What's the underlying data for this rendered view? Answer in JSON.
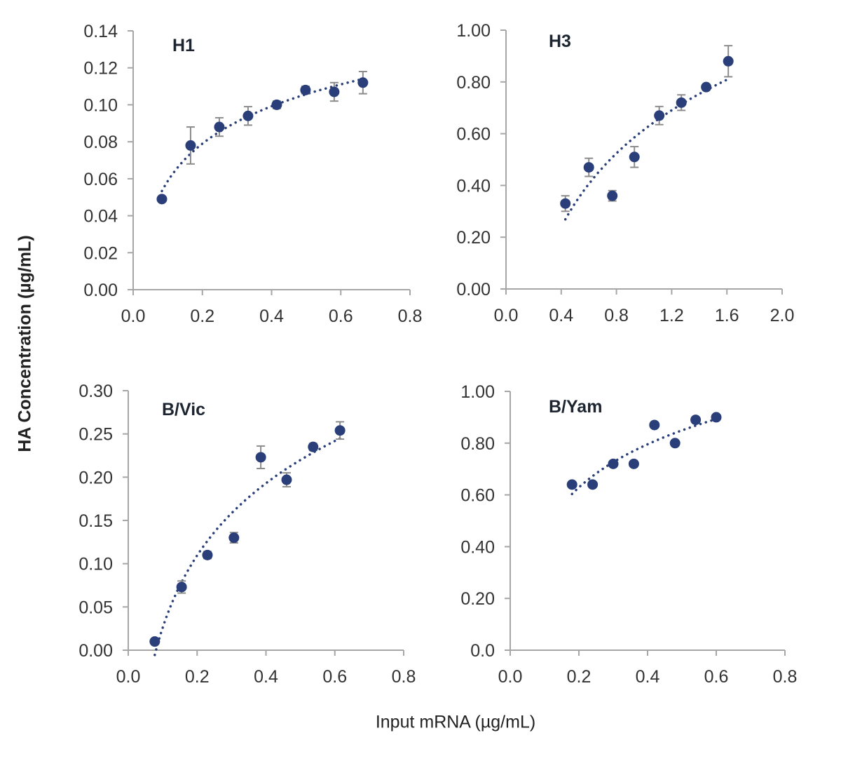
{
  "chart_data": {
    "type": "scatter",
    "xlabel": "Input mRNA (µg/mL)",
    "ylabel": "HA Concentration (µg/mL)",
    "colors": {
      "marker": "#2a3f7a",
      "trendline": "#2a3f7a",
      "error_bar": "#8c8c8c",
      "axis": "#a6a6a6"
    },
    "panels": [
      {
        "title": "H1",
        "xlim": [
          0,
          0.8
        ],
        "xticks": [
          "0.0",
          "0.2",
          "0.4",
          "0.6",
          "0.8"
        ],
        "ylim": [
          0,
          0.14
        ],
        "yticks": [
          "0.00",
          "0.02",
          "0.04",
          "0.06",
          "0.08",
          "0.10",
          "0.12",
          "0.14"
        ],
        "x": [
          0.083,
          0.166,
          0.249,
          0.332,
          0.415,
          0.498,
          0.581,
          0.664
        ],
        "y": [
          0.049,
          0.078,
          0.088,
          0.094,
          0.1,
          0.108,
          0.107,
          0.112
        ],
        "error": [
          0,
          0.01,
          0.005,
          0.005,
          0.002,
          0.002,
          0.005,
          0.006
        ],
        "trendline": "logarithmic"
      },
      {
        "title": "H3",
        "xlim": [
          0,
          2.0
        ],
        "xticks": [
          "0.0",
          "0.4",
          "0.8",
          "1.2",
          "1.6",
          "2.0"
        ],
        "ylim": [
          0,
          1.0
        ],
        "yticks": [
          "0.00",
          "0.20",
          "0.40",
          "0.60",
          "0.80",
          "1.00"
        ],
        "x": [
          0.43,
          0.6,
          0.77,
          0.93,
          1.11,
          1.27,
          1.45,
          1.61
        ],
        "y": [
          0.33,
          0.47,
          0.36,
          0.51,
          0.67,
          0.72,
          0.78,
          0.88
        ],
        "error": [
          0.03,
          0.035,
          0.02,
          0.04,
          0.035,
          0.03,
          0.01,
          0.06
        ],
        "trendline": "logarithmic"
      },
      {
        "title": "B/Vic",
        "xlim": [
          0,
          0.8
        ],
        "xticks": [
          "0.0",
          "0.2",
          "0.4",
          "0.6",
          "0.8"
        ],
        "ylim": [
          0,
          0.3
        ],
        "yticks": [
          "0.00",
          "0.05",
          "0.10",
          "0.15",
          "0.20",
          "0.25",
          "0.30"
        ],
        "x": [
          0.077,
          0.155,
          0.23,
          0.307,
          0.385,
          0.46,
          0.537,
          0.615
        ],
        "y": [
          0.01,
          0.073,
          0.11,
          0.13,
          0.223,
          0.197,
          0.235,
          0.254
        ],
        "error": [
          0,
          0.007,
          0.004,
          0.006,
          0.013,
          0.008,
          0.004,
          0.01
        ],
        "trendline": "logarithmic"
      },
      {
        "title": "B/Yam",
        "xlim": [
          0,
          0.8
        ],
        "xticks": [
          "0.0",
          "0.2",
          "0.4",
          "0.6",
          "0.8"
        ],
        "ylim": [
          0,
          1.0
        ],
        "yticks": [
          "0.0",
          "0.20",
          "0.40",
          "0.60",
          "0.80",
          "1.00"
        ],
        "x": [
          0.18,
          0.24,
          0.3,
          0.36,
          0.42,
          0.48,
          0.54,
          0.6
        ],
        "y": [
          0.64,
          0.64,
          0.72,
          0.72,
          0.87,
          0.8,
          0.89,
          0.9
        ],
        "error": [
          0,
          0,
          0,
          0,
          0,
          0,
          0,
          0
        ],
        "trendline": "logarithmic"
      }
    ]
  }
}
